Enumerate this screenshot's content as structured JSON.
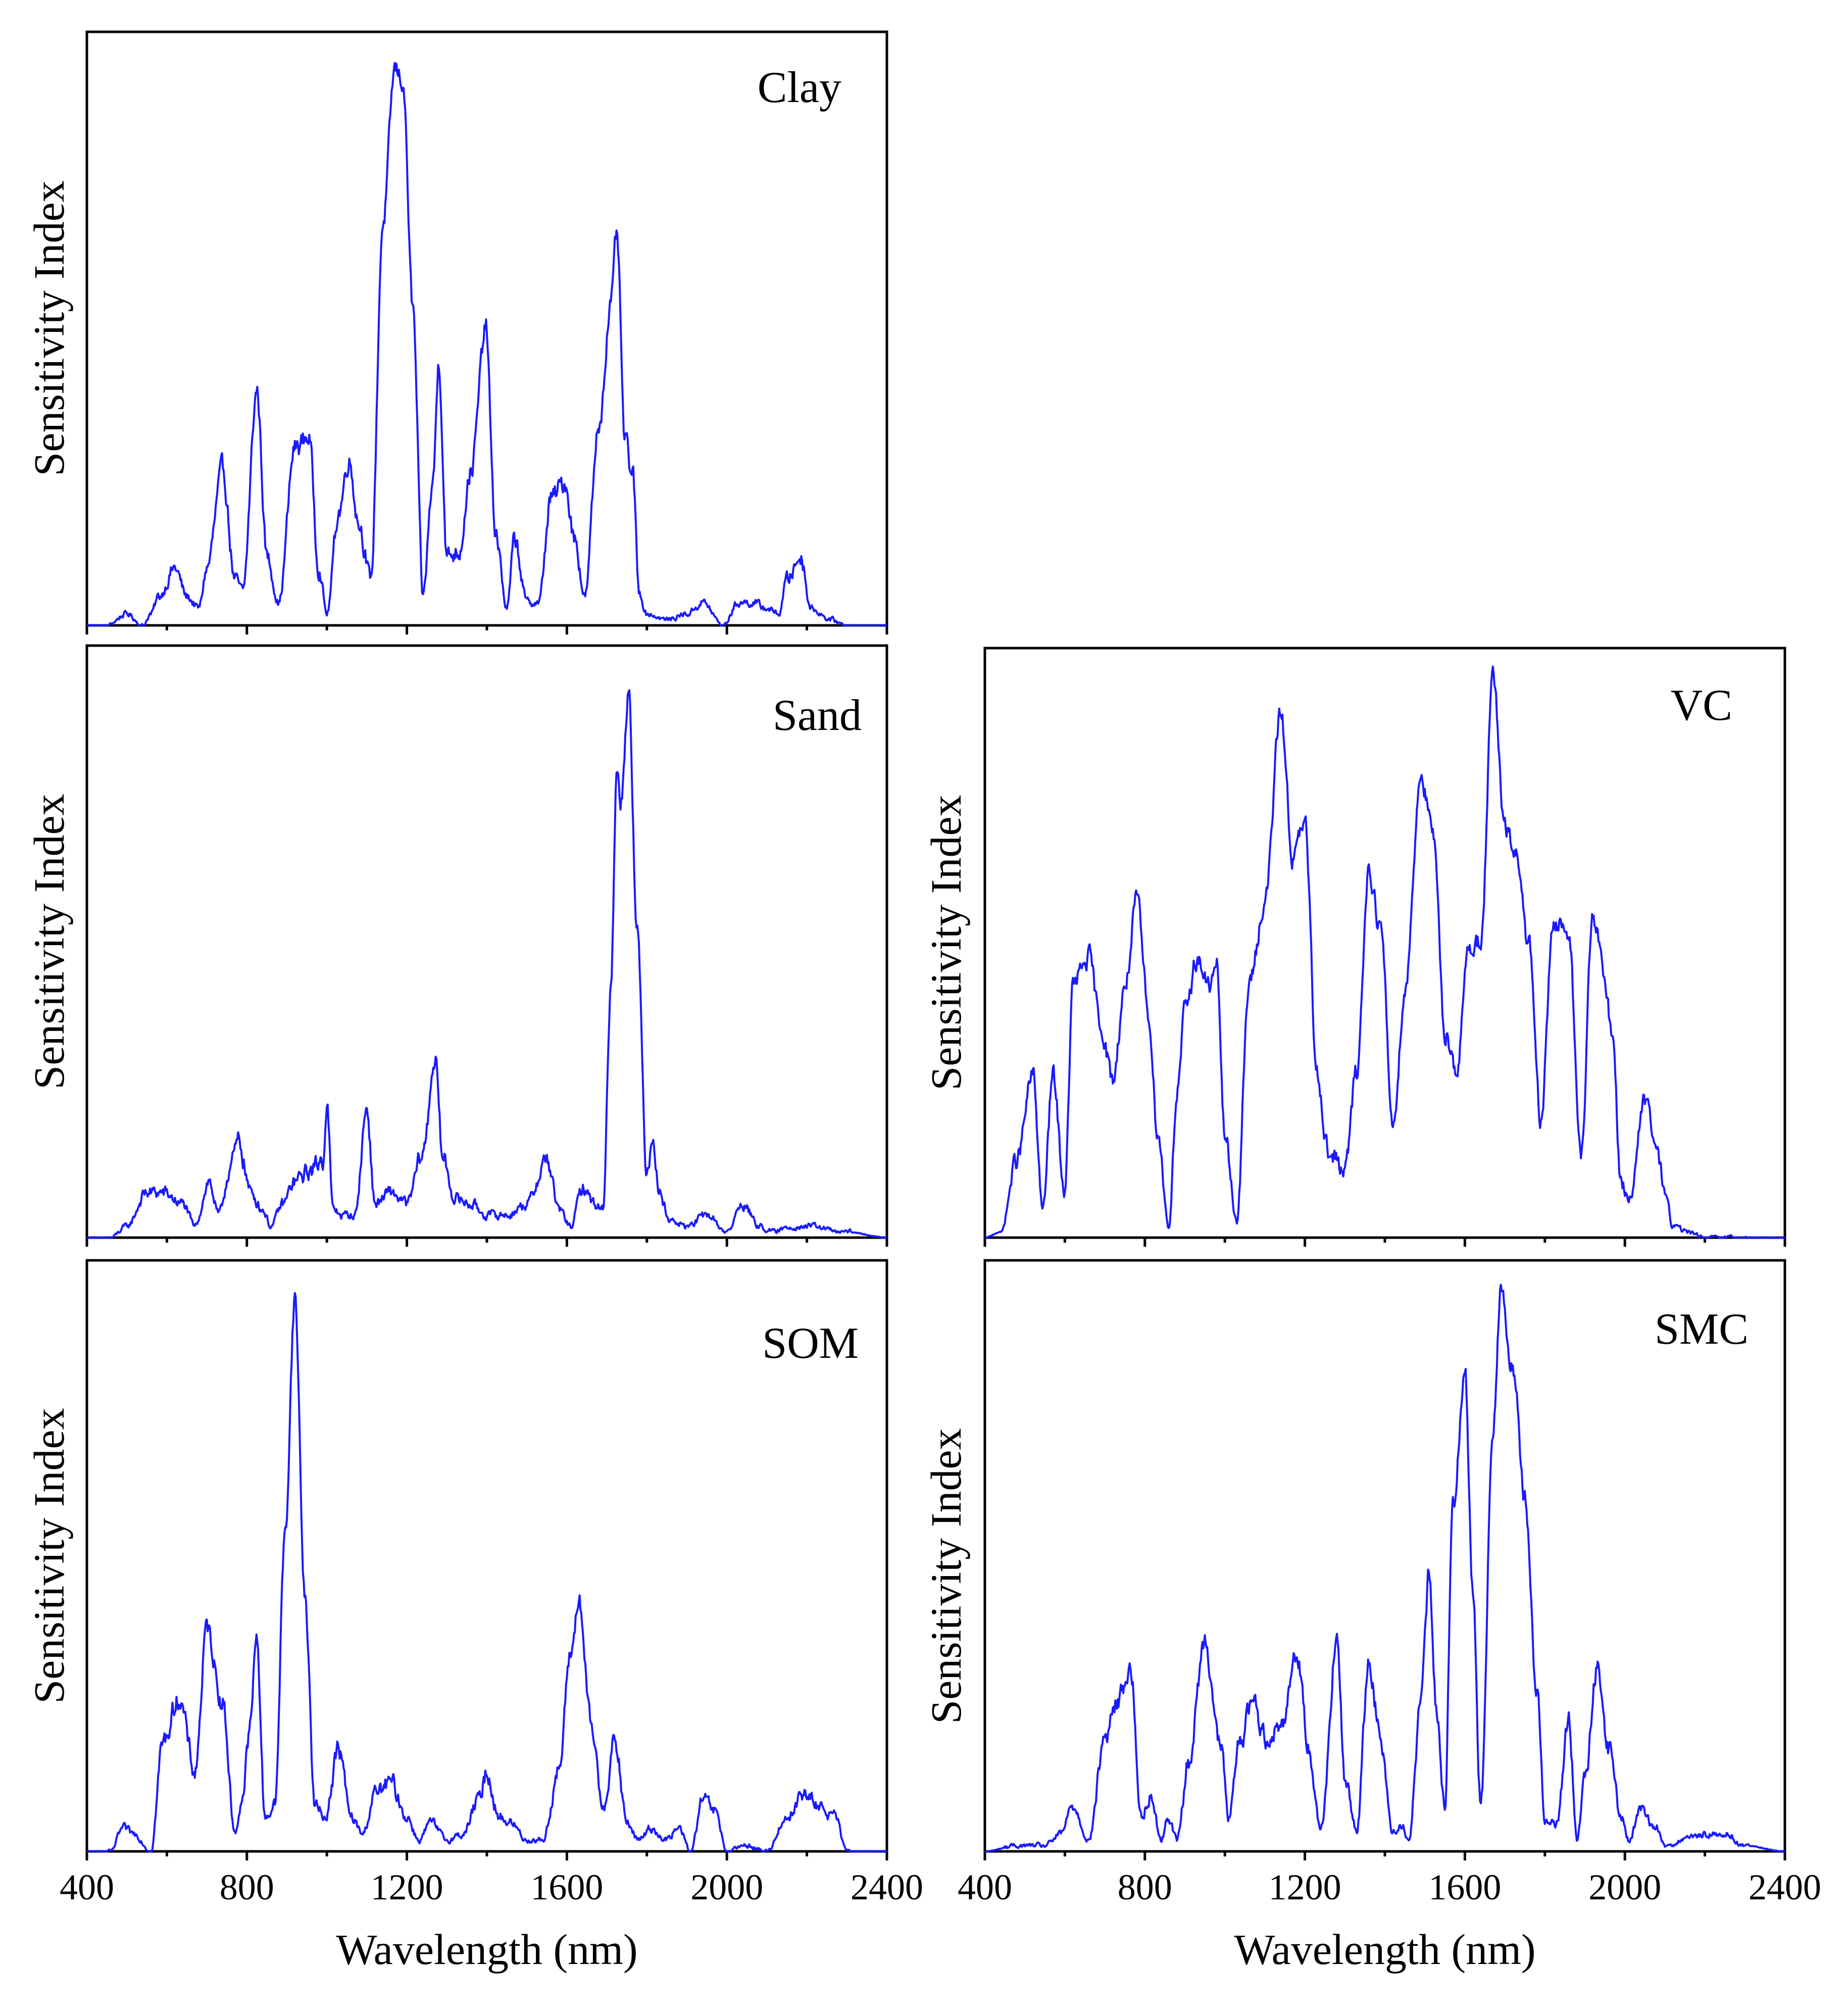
{
  "figure": {
    "line_color": "#1a1aff"
  },
  "chart_data": [
    {
      "type": "line",
      "id": "clay",
      "title": "Clay",
      "xlabel": "",
      "ylabel": "Sensitivity Index",
      "xlim": [
        400,
        2400
      ],
      "ylim": [
        0,
        1
      ],
      "xticks": [
        400,
        800,
        1200,
        1600,
        2000,
        2400
      ],
      "xtick_labels": [],
      "peaks": [
        [
          400,
          0.0
        ],
        [
          450,
          0.0
        ],
        [
          500,
          0.02
        ],
        [
          540,
          0.0
        ],
        [
          560,
          0.02
        ],
        [
          580,
          0.05
        ],
        [
          620,
          0.1
        ],
        [
          650,
          0.05
        ],
        [
          680,
          0.03
        ],
        [
          700,
          0.1
        ],
        [
          740,
          0.27
        ],
        [
          770,
          0.08
        ],
        [
          790,
          0.06
        ],
        [
          825,
          0.41
        ],
        [
          850,
          0.12
        ],
        [
          880,
          0.04
        ],
        [
          920,
          0.31
        ],
        [
          955,
          0.33
        ],
        [
          980,
          0.1
        ],
        [
          1000,
          0.02
        ],
        [
          1030,
          0.2
        ],
        [
          1055,
          0.29
        ],
        [
          1080,
          0.18
        ],
        [
          1110,
          0.08
        ],
        [
          1140,
          0.7
        ],
        [
          1170,
          0.97
        ],
        [
          1190,
          0.95
        ],
        [
          1215,
          0.55
        ],
        [
          1240,
          0.05
        ],
        [
          1265,
          0.25
        ],
        [
          1280,
          0.46
        ],
        [
          1300,
          0.12
        ],
        [
          1330,
          0.13
        ],
        [
          1360,
          0.27
        ],
        [
          1398,
          0.52
        ],
        [
          1420,
          0.17
        ],
        [
          1450,
          0.03
        ],
        [
          1470,
          0.15
        ],
        [
          1500,
          0.04
        ],
        [
          1530,
          0.04
        ],
        [
          1560,
          0.22
        ],
        [
          1595,
          0.25
        ],
        [
          1620,
          0.15
        ],
        [
          1645,
          0.05
        ],
        [
          1680,
          0.35
        ],
        [
          1710,
          0.56
        ],
        [
          1725,
          0.68
        ],
        [
          1745,
          0.32
        ],
        [
          1765,
          0.26
        ],
        [
          1780,
          0.06
        ],
        [
          1800,
          0.02
        ],
        [
          1850,
          0.01
        ],
        [
          1900,
          0.02
        ],
        [
          1940,
          0.04
        ],
        [
          1990,
          0.0
        ],
        [
          2030,
          0.04
        ],
        [
          2060,
          0.04
        ],
        [
          2100,
          0.03
        ],
        [
          2130,
          0.02
        ],
        [
          2150,
          0.08
        ],
        [
          2185,
          0.12
        ],
        [
          2210,
          0.03
        ],
        [
          2260,
          0.01
        ],
        [
          2300,
          0.0
        ],
        [
          2400,
          0.0
        ]
      ]
    },
    {
      "type": "line",
      "id": "sand",
      "title": "Sand",
      "xlabel": "",
      "ylabel": "Sensitivity Index",
      "xlim": [
        400,
        2400
      ],
      "ylim": [
        0,
        1
      ],
      "xticks": [
        400,
        800,
        1200,
        1600,
        2000,
        2400
      ],
      "xtick_labels": [],
      "peaks": [
        [
          400,
          0.0
        ],
        [
          460,
          0.0
        ],
        [
          500,
          0.02
        ],
        [
          550,
          0.08
        ],
        [
          590,
          0.08
        ],
        [
          640,
          0.06
        ],
        [
          670,
          0.02
        ],
        [
          705,
          0.1
        ],
        [
          730,
          0.04
        ],
        [
          760,
          0.13
        ],
        [
          780,
          0.17
        ],
        [
          810,
          0.08
        ],
        [
          840,
          0.05
        ],
        [
          860,
          0.02
        ],
        [
          890,
          0.06
        ],
        [
          920,
          0.1
        ],
        [
          960,
          0.12
        ],
        [
          990,
          0.14
        ],
        [
          1000,
          0.24
        ],
        [
          1015,
          0.05
        ],
        [
          1040,
          0.04
        ],
        [
          1070,
          0.04
        ],
        [
          1100,
          0.23
        ],
        [
          1120,
          0.06
        ],
        [
          1160,
          0.08
        ],
        [
          1200,
          0.06
        ],
        [
          1240,
          0.15
        ],
        [
          1270,
          0.32
        ],
        [
          1290,
          0.14
        ],
        [
          1320,
          0.07
        ],
        [
          1360,
          0.06
        ],
        [
          1400,
          0.04
        ],
        [
          1450,
          0.04
        ],
        [
          1500,
          0.06
        ],
        [
          1550,
          0.14
        ],
        [
          1580,
          0.05
        ],
        [
          1610,
          0.02
        ],
        [
          1640,
          0.09
        ],
        [
          1670,
          0.06
        ],
        [
          1690,
          0.05
        ],
        [
          1710,
          0.45
        ],
        [
          1725,
          0.83
        ],
        [
          1735,
          0.78
        ],
        [
          1755,
          0.98
        ],
        [
          1775,
          0.55
        ],
        [
          1800,
          0.12
        ],
        [
          1815,
          0.19
        ],
        [
          1830,
          0.08
        ],
        [
          1860,
          0.03
        ],
        [
          1900,
          0.02
        ],
        [
          1950,
          0.04
        ],
        [
          2000,
          0.01
        ],
        [
          2040,
          0.06
        ],
        [
          2080,
          0.02
        ],
        [
          2120,
          0.01
        ],
        [
          2160,
          0.02
        ],
        [
          2220,
          0.02
        ],
        [
          2280,
          0.01
        ],
        [
          2300,
          0.01
        ],
        [
          2400,
          0.0
        ]
      ]
    },
    {
      "type": "line",
      "id": "som",
      "title": "SOM",
      "xlabel": "Wavelength (nm)",
      "ylabel": "Sensitivity Index",
      "xlim": [
        400,
        2400
      ],
      "ylim": [
        0,
        1
      ],
      "xticks": [
        400,
        800,
        1200,
        1600,
        2000,
        2400
      ],
      "xtick_labels": [
        "400",
        "800",
        "1200",
        "1600",
        "2000",
        "2400"
      ],
      "peaks": [
        [
          400,
          0.0
        ],
        [
          460,
          0.0
        ],
        [
          490,
          0.04
        ],
        [
          520,
          0.03
        ],
        [
          560,
          0.0
        ],
        [
          590,
          0.19
        ],
        [
          630,
          0.27
        ],
        [
          670,
          0.14
        ],
        [
          700,
          0.39
        ],
        [
          740,
          0.26
        ],
        [
          770,
          0.03
        ],
        [
          790,
          0.1
        ],
        [
          805,
          0.2
        ],
        [
          825,
          0.37
        ],
        [
          845,
          0.06
        ],
        [
          870,
          0.08
        ],
        [
          895,
          0.55
        ],
        [
          920,
          0.97
        ],
        [
          945,
          0.45
        ],
        [
          970,
          0.08
        ],
        [
          995,
          0.06
        ],
        [
          1030,
          0.18
        ],
        [
          1060,
          0.06
        ],
        [
          1090,
          0.03
        ],
        [
          1120,
          0.1
        ],
        [
          1160,
          0.12
        ],
        [
          1200,
          0.06
        ],
        [
          1230,
          0.02
        ],
        [
          1260,
          0.05
        ],
        [
          1300,
          0.02
        ],
        [
          1340,
          0.03
        ],
        [
          1380,
          0.09
        ],
        [
          1400,
          0.14
        ],
        [
          1430,
          0.06
        ],
        [
          1460,
          0.05
        ],
        [
          1500,
          0.02
        ],
        [
          1540,
          0.02
        ],
        [
          1580,
          0.14
        ],
        [
          1610,
          0.35
        ],
        [
          1630,
          0.44
        ],
        [
          1660,
          0.22
        ],
        [
          1690,
          0.08
        ],
        [
          1720,
          0.19
        ],
        [
          1750,
          0.05
        ],
        [
          1780,
          0.02
        ],
        [
          1810,
          0.04
        ],
        [
          1850,
          0.02
        ],
        [
          1880,
          0.04
        ],
        [
          1910,
          0.0
        ],
        [
          1940,
          0.09
        ],
        [
          1970,
          0.07
        ],
        [
          2000,
          0.0
        ],
        [
          2050,
          0.01
        ],
        [
          2100,
          0.0
        ],
        [
          2150,
          0.06
        ],
        [
          2190,
          0.1
        ],
        [
          2230,
          0.08
        ],
        [
          2270,
          0.06
        ],
        [
          2300,
          0.0
        ],
        [
          2400,
          0.0
        ]
      ]
    },
    {
      "type": "line",
      "id": "vc",
      "title": "VC",
      "xlabel": "",
      "ylabel": "Sensitivity Index",
      "xlim": [
        400,
        2400
      ],
      "ylim": [
        0,
        1
      ],
      "xticks": [
        400,
        800,
        1200,
        1600,
        2000,
        2400
      ],
      "xtick_labels": [],
      "peaks": [
        [
          400,
          0.0
        ],
        [
          440,
          0.01
        ],
        [
          480,
          0.14
        ],
        [
          520,
          0.29
        ],
        [
          545,
          0.05
        ],
        [
          570,
          0.29
        ],
        [
          600,
          0.08
        ],
        [
          620,
          0.45
        ],
        [
          660,
          0.5
        ],
        [
          690,
          0.38
        ],
        [
          720,
          0.28
        ],
        [
          750,
          0.45
        ],
        [
          780,
          0.6
        ],
        [
          810,
          0.4
        ],
        [
          830,
          0.2
        ],
        [
          860,
          0.02
        ],
        [
          880,
          0.26
        ],
        [
          900,
          0.4
        ],
        [
          930,
          0.5
        ],
        [
          960,
          0.45
        ],
        [
          980,
          0.48
        ],
        [
          1000,
          0.18
        ],
        [
          1030,
          0.03
        ],
        [
          1060,
          0.45
        ],
        [
          1100,
          0.6
        ],
        [
          1140,
          0.94
        ],
        [
          1170,
          0.68
        ],
        [
          1200,
          0.74
        ],
        [
          1230,
          0.3
        ],
        [
          1260,
          0.15
        ],
        [
          1300,
          0.12
        ],
        [
          1330,
          0.3
        ],
        [
          1360,
          0.66
        ],
        [
          1390,
          0.55
        ],
        [
          1420,
          0.2
        ],
        [
          1450,
          0.44
        ],
        [
          1490,
          0.83
        ],
        [
          1520,
          0.72
        ],
        [
          1550,
          0.37
        ],
        [
          1580,
          0.3
        ],
        [
          1610,
          0.52
        ],
        [
          1640,
          0.53
        ],
        [
          1670,
          1.0
        ],
        [
          1700,
          0.73
        ],
        [
          1730,
          0.68
        ],
        [
          1760,
          0.52
        ],
        [
          1790,
          0.2
        ],
        [
          1820,
          0.56
        ],
        [
          1860,
          0.55
        ],
        [
          1890,
          0.14
        ],
        [
          1920,
          0.58
        ],
        [
          1950,
          0.46
        ],
        [
          1970,
          0.35
        ],
        [
          1990,
          0.1
        ],
        [
          2010,
          0.07
        ],
        [
          2050,
          0.24
        ],
        [
          2080,
          0.16
        ],
        [
          2100,
          0.08
        ],
        [
          2120,
          0.02
        ],
        [
          2160,
          0.01
        ],
        [
          2200,
          0.0
        ],
        [
          2400,
          0.0
        ]
      ]
    },
    {
      "type": "line",
      "id": "smc",
      "title": "SMC",
      "xlabel": "Wavelength (nm)",
      "ylabel": "Sensitivity Index",
      "xlim": [
        400,
        2400
      ],
      "ylim": [
        0,
        1
      ],
      "xticks": [
        400,
        800,
        1200,
        1600,
        2000,
        2400
      ],
      "xtick_labels": [
        "400",
        "800",
        "1200",
        "1600",
        "2000",
        "2400"
      ],
      "peaks": [
        [
          400,
          0.0
        ],
        [
          480,
          0.01
        ],
        [
          550,
          0.01
        ],
        [
          590,
          0.03
        ],
        [
          620,
          0.08
        ],
        [
          660,
          0.02
        ],
        [
          700,
          0.2
        ],
        [
          730,
          0.26
        ],
        [
          765,
          0.32
        ],
        [
          790,
          0.06
        ],
        [
          815,
          0.1
        ],
        [
          840,
          0.02
        ],
        [
          860,
          0.06
        ],
        [
          880,
          0.02
        ],
        [
          910,
          0.16
        ],
        [
          950,
          0.37
        ],
        [
          990,
          0.18
        ],
        [
          1010,
          0.06
        ],
        [
          1040,
          0.2
        ],
        [
          1070,
          0.27
        ],
        [
          1100,
          0.2
        ],
        [
          1140,
          0.22
        ],
        [
          1180,
          0.35
        ],
        [
          1210,
          0.18
        ],
        [
          1240,
          0.04
        ],
        [
          1280,
          0.37
        ],
        [
          1300,
          0.12
        ],
        [
          1330,
          0.04
        ],
        [
          1360,
          0.33
        ],
        [
          1390,
          0.2
        ],
        [
          1420,
          0.03
        ],
        [
          1440,
          0.05
        ],
        [
          1460,
          0.02
        ],
        [
          1490,
          0.26
        ],
        [
          1510,
          0.48
        ],
        [
          1530,
          0.24
        ],
        [
          1550,
          0.08
        ],
        [
          1570,
          0.6
        ],
        [
          1600,
          0.85
        ],
        [
          1620,
          0.45
        ],
        [
          1640,
          0.08
        ],
        [
          1670,
          0.75
        ],
        [
          1690,
          0.98
        ],
        [
          1720,
          0.85
        ],
        [
          1750,
          0.62
        ],
        [
          1780,
          0.28
        ],
        [
          1800,
          0.06
        ],
        [
          1830,
          0.05
        ],
        [
          1860,
          0.23
        ],
        [
          1880,
          0.02
        ],
        [
          1900,
          0.12
        ],
        [
          1930,
          0.32
        ],
        [
          1960,
          0.18
        ],
        [
          1990,
          0.06
        ],
        [
          2010,
          0.02
        ],
        [
          2040,
          0.07
        ],
        [
          2080,
          0.04
        ],
        [
          2100,
          0.01
        ],
        [
          2150,
          0.02
        ],
        [
          2200,
          0.03
        ],
        [
          2250,
          0.03
        ],
        [
          2300,
          0.01
        ],
        [
          2400,
          0.0
        ]
      ]
    }
  ]
}
